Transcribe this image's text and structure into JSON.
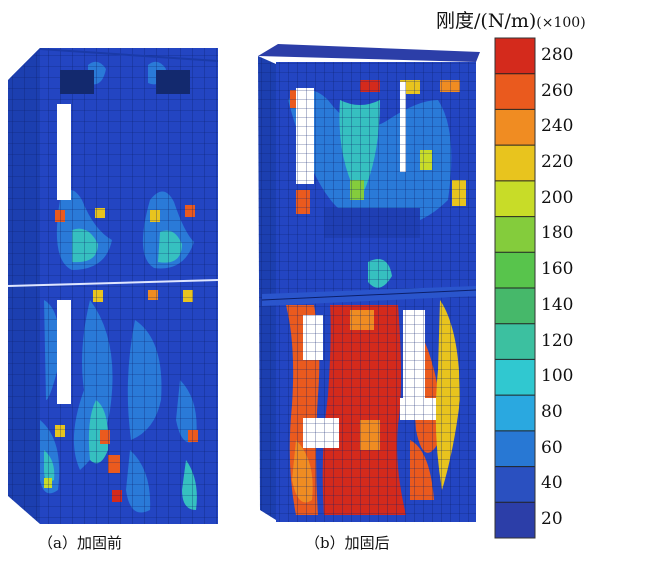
{
  "legend": {
    "title": "刚度/(N/m)",
    "unit": "(×100)",
    "ticks": [
      "280",
      "260",
      "240",
      "220",
      "200",
      "180",
      "160",
      "140",
      "120",
      "100",
      "80",
      "60",
      "40",
      "20"
    ],
    "colors": [
      "#d42a1c",
      "#ea5a1e",
      "#f08c22",
      "#e8c41e",
      "#c8dc28",
      "#84cc3c",
      "#58c44c",
      "#46b86a",
      "#3cc0a0",
      "#30c8d0",
      "#2aa8e0",
      "#2878d4",
      "#2a50c0",
      "#2c3ea8"
    ]
  },
  "captions": {
    "a": "（a）加固前",
    "b": "（b）加固后"
  }
}
